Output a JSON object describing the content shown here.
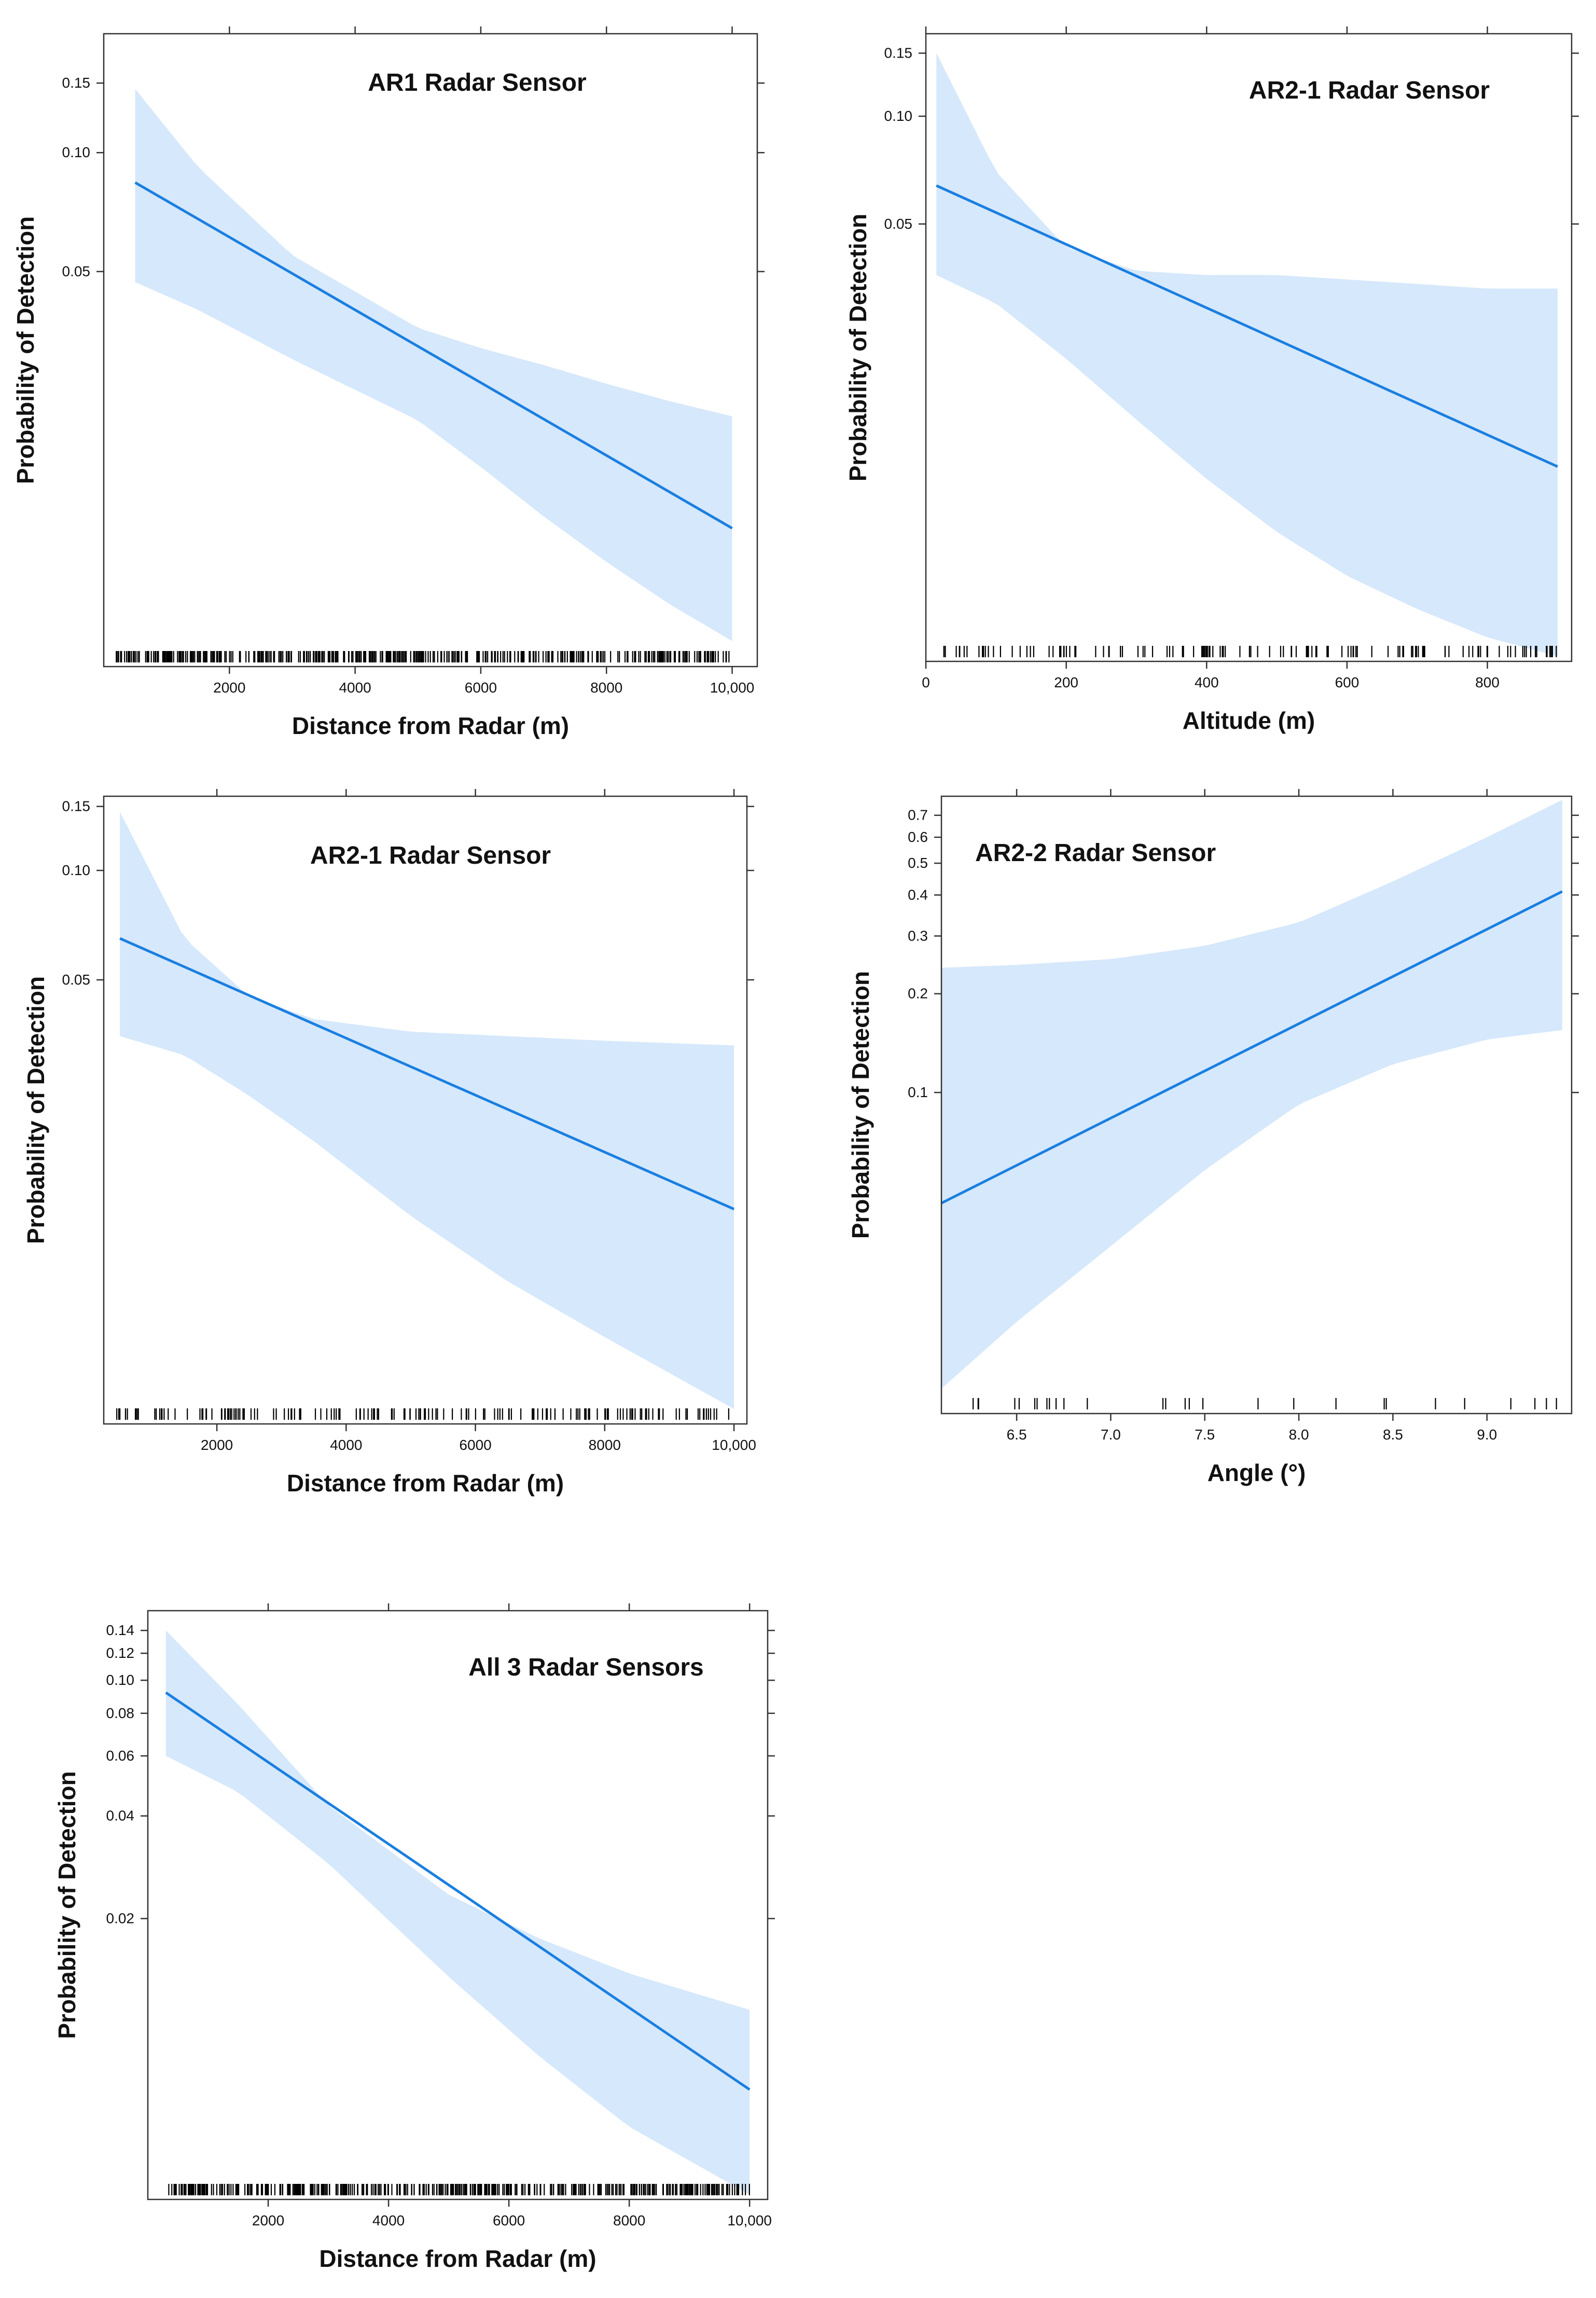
{
  "colors": {
    "line": "#1a7fe0",
    "band": "#d6e8fb",
    "axis": "#333333",
    "text": "#111111"
  },
  "chart_data": [
    {
      "type": "line",
      "title": "AR1 Radar Sensor",
      "xlabel": "Distance from Radar (m)",
      "ylabel": "Probability of Detection",
      "xlim": [
        0,
        10400
      ],
      "ylim": [
        0.005,
        0.2
      ],
      "ylog": true,
      "xticks": [
        2000,
        4000,
        6000,
        8000,
        10000
      ],
      "xtick_labels": [
        "2000",
        "4000",
        "6000",
        "8000",
        "10,000"
      ],
      "yticks": [
        0.05,
        0.1,
        0.15
      ],
      "ytick_labels": [
        "0.05",
        "0.10",
        "0.15"
      ],
      "series": [
        {
          "x": [
            500,
            10000
          ],
          "y": [
            0.084,
            0.0112
          ]
        }
      ],
      "ci": {
        "x": [
          500,
          1500,
          3000,
          5000,
          6000,
          7000,
          8000,
          9000,
          10000
        ],
        "upper": [
          0.145,
          0.092,
          0.055,
          0.036,
          0.032,
          0.029,
          0.026,
          0.0235,
          0.0215
        ],
        "lower": [
          0.047,
          0.04,
          0.03,
          0.021,
          0.016,
          0.012,
          0.0092,
          0.0072,
          0.0058
        ]
      },
      "rug": {
        "min": 200,
        "max": 10000,
        "n": 420
      }
    },
    {
      "type": "line",
      "title": "AR2-1 Radar Sensor",
      "xlabel": "Altitude (m)",
      "ylabel": "Probability of Detection",
      "xlim": [
        0,
        920
      ],
      "ylim": [
        0.003,
        0.17
      ],
      "ylog": true,
      "xticks": [
        0,
        200,
        400,
        600,
        800
      ],
      "xtick_labels": [
        "0",
        "200",
        "400",
        "600",
        "800"
      ],
      "yticks": [
        0.05,
        0.1,
        0.15
      ],
      "ytick_labels": [
        "0.05",
        "0.10",
        "0.15"
      ],
      "series": [
        {
          "x": [
            15,
            900
          ],
          "y": [
            0.064,
            0.0105
          ]
        }
      ],
      "ci": {
        "x": [
          15,
          100,
          200,
          300,
          400,
          500,
          600,
          700,
          800,
          900
        ],
        "upper": [
          0.15,
          0.07,
          0.043,
          0.037,
          0.036,
          0.036,
          0.035,
          0.034,
          0.033,
          0.033
        ],
        "lower": [
          0.036,
          0.03,
          0.021,
          0.0142,
          0.0097,
          0.0069,
          0.0052,
          0.0042,
          0.0035,
          0.0031
        ]
      },
      "rug": {
        "min": 20,
        "max": 900,
        "n": 130
      }
    },
    {
      "type": "line",
      "title": "AR2-1 Radar Sensor",
      "xlabel": "Distance from Radar (m)",
      "ylabel": "Probability of Detection",
      "xlim": [
        250,
        10200
      ],
      "ylim": [
        0.003,
        0.16
      ],
      "ylog": true,
      "xticks": [
        2000,
        4000,
        6000,
        8000,
        10000
      ],
      "xtick_labels": [
        "2000",
        "4000",
        "6000",
        "8000",
        "10,000"
      ],
      "yticks": [
        0.05,
        0.1,
        0.15
      ],
      "ytick_labels": [
        "0.05",
        "0.10",
        "0.15"
      ],
      "series": [
        {
          "x": [
            500,
            10000
          ],
          "y": [
            0.065,
            0.0117
          ]
        }
      ],
      "ci": {
        "x": [
          500,
          1500,
          2500,
          3500,
          5000,
          6500,
          8000,
          10000
        ],
        "upper": [
          0.145,
          0.065,
          0.045,
          0.039,
          0.036,
          0.035,
          0.034,
          0.033
        ],
        "lower": [
          0.035,
          0.031,
          0.024,
          0.018,
          0.0112,
          0.0074,
          0.0052,
          0.0033
        ]
      },
      "rug": {
        "min": 300,
        "max": 10000,
        "n": 170
      }
    },
    {
      "type": "line",
      "title": "AR2-2 Radar Sensor",
      "xlabel": "Angle (°)",
      "ylabel": "Probability of Detection",
      "xlim": [
        6.1,
        9.45
      ],
      "ylim": [
        0.0105,
        0.8
      ],
      "ylog": true,
      "xticks": [
        6.5,
        7.0,
        7.5,
        8.0,
        8.5,
        9.0
      ],
      "xtick_labels": [
        "6.5",
        "7.0",
        "7.5",
        "8.0",
        "8.5",
        "9.0"
      ],
      "yticks": [
        0.1,
        0.2,
        0.3,
        0.4,
        0.5,
        0.6,
        0.7
      ],
      "ytick_labels": [
        "0.1",
        "0.2",
        "0.3",
        "0.4",
        "0.5",
        "0.6",
        "0.7"
      ],
      "series": [
        {
          "x": [
            6.1,
            9.4
          ],
          "y": [
            0.046,
            0.41
          ]
        }
      ],
      "ci": {
        "x": [
          6.1,
          6.5,
          7.0,
          7.5,
          8.0,
          8.5,
          9.0,
          9.4
        ],
        "upper": [
          0.24,
          0.245,
          0.255,
          0.28,
          0.33,
          0.44,
          0.6,
          0.78
        ],
        "lower": [
          0.0125,
          0.02,
          0.034,
          0.058,
          0.092,
          0.122,
          0.145,
          0.155
        ]
      },
      "rug": {
        "min": 6.15,
        "max": 9.4,
        "n": 28
      }
    },
    {
      "type": "line",
      "title": "All 3 Radar Sensors",
      "xlabel": "Distance from Radar (m)",
      "ylabel": "Probability of Detection",
      "xlim": [
        0,
        10300
      ],
      "ylim": [
        0.003,
        0.16
      ],
      "ylog": true,
      "xticks": [
        2000,
        4000,
        6000,
        8000,
        10000
      ],
      "xtick_labels": [
        "2000",
        "4000",
        "6000",
        "8000",
        "10,000"
      ],
      "yticks": [
        0.02,
        0.04,
        0.06,
        0.08,
        0.1,
        0.12,
        0.14
      ],
      "ytick_labels": [
        "0.02",
        "0.04",
        "0.06",
        "0.08",
        "0.10",
        "0.12",
        "0.14"
      ],
      "series": [
        {
          "x": [
            300,
            10000
          ],
          "y": [
            0.092,
            0.0063
          ]
        }
      ],
      "ci": {
        "x": [
          300,
          1500,
          3000,
          5000,
          6500,
          8000,
          10000
        ],
        "upper": [
          0.14,
          0.085,
          0.043,
          0.0235,
          0.0175,
          0.0138,
          0.0108
        ],
        "lower": [
          0.06,
          0.047,
          0.029,
          0.0135,
          0.0079,
          0.0049,
          0.0031
        ]
      },
      "rug": {
        "min": 300,
        "max": 10000,
        "n": 420
      }
    }
  ]
}
